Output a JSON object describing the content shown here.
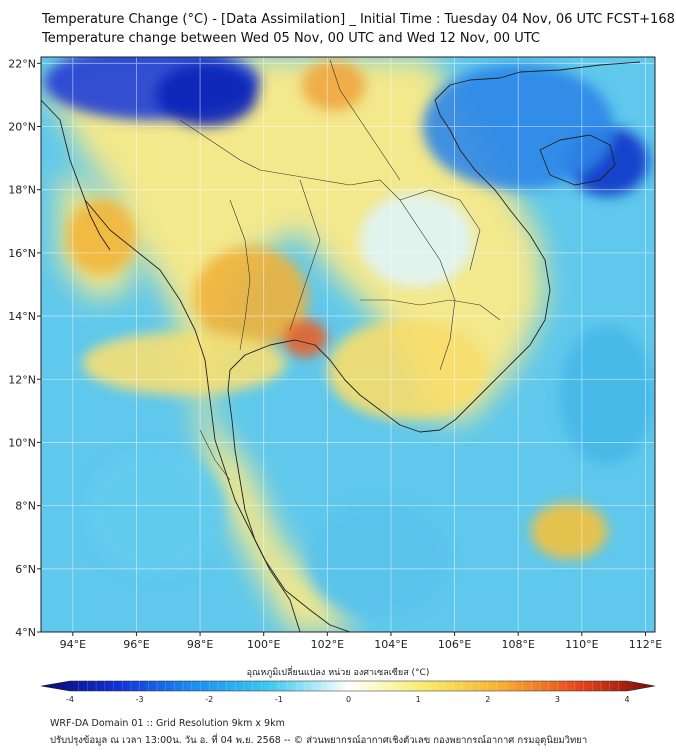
{
  "header": {
    "title_line1": "Temperature Change (°C) - [Data Assimilation] _ Initial Time : Tuesday 04 Nov, 06 UTC FCST+168",
    "title_line2": "Temperature change between Wed 05 Nov, 00 UTC and Wed 12 Nov, 00 UTC"
  },
  "map": {
    "lon_range": [
      93,
      112.3
    ],
    "lat_range": [
      4,
      22.2
    ],
    "lon_ticks": [
      {
        "value": 94,
        "label": "94°E"
      },
      {
        "value": 96,
        "label": "96°E"
      },
      {
        "value": 98,
        "label": "98°E"
      },
      {
        "value": 100,
        "label": "100°E"
      },
      {
        "value": 102,
        "label": "102°E"
      },
      {
        "value": 104,
        "label": "104°E"
      },
      {
        "value": 106,
        "label": "106°E"
      },
      {
        "value": 108,
        "label": "108°E"
      },
      {
        "value": 110,
        "label": "110°E"
      },
      {
        "value": 112,
        "label": "112°E"
      }
    ],
    "lat_ticks": [
      {
        "value": 4,
        "label": "4°N"
      },
      {
        "value": 6,
        "label": "6°N"
      },
      {
        "value": 8,
        "label": "8°N"
      },
      {
        "value": 10,
        "label": "10°N"
      },
      {
        "value": 12,
        "label": "12°N"
      },
      {
        "value": 14,
        "label": "14°N"
      },
      {
        "value": 16,
        "label": "16°N"
      },
      {
        "value": 18,
        "label": "18°N"
      },
      {
        "value": 20,
        "label": "20°N"
      },
      {
        "value": 22,
        "label": "22°N"
      }
    ],
    "grid": true,
    "colors": {
      "ocean_base": "#5fc8ec",
      "land_base": "#f3e88c",
      "coastline": "#222222",
      "grid": "#ffffff"
    },
    "field_blobs": [
      {
        "lon": 96.5,
        "lat": 21.4,
        "rx": 3.4,
        "ry": 1.2,
        "color": "#1d3fd6"
      },
      {
        "lon": 98.2,
        "lat": 21.0,
        "rx": 1.6,
        "ry": 1.0,
        "color": "#0b24b8"
      },
      {
        "lon": 110.8,
        "lat": 18.9,
        "rx": 1.3,
        "ry": 1.1,
        "color": "#0d35c9"
      },
      {
        "lon": 108.0,
        "lat": 20.0,
        "rx": 3.0,
        "ry": 2.0,
        "color": "#2e86e8"
      },
      {
        "lon": 94.9,
        "lat": 16.5,
        "rx": 1.1,
        "ry": 1.2,
        "color": "#f1b53b"
      },
      {
        "lon": 99.6,
        "lat": 14.6,
        "rx": 1.8,
        "ry": 1.6,
        "color": "#f0b23a"
      },
      {
        "lon": 101.3,
        "lat": 13.3,
        "rx": 0.7,
        "ry": 0.6,
        "color": "#e8612a"
      },
      {
        "lon": 102.2,
        "lat": 21.3,
        "rx": 1.0,
        "ry": 0.8,
        "color": "#f0a640"
      },
      {
        "lon": 109.6,
        "lat": 7.2,
        "rx": 1.2,
        "ry": 0.9,
        "color": "#f5c23e"
      },
      {
        "lon": 104.8,
        "lat": 16.4,
        "rx": 1.8,
        "ry": 1.5,
        "color": "#dff4f7"
      },
      {
        "lon": 103.6,
        "lat": 6.3,
        "rx": 2.2,
        "ry": 1.8,
        "color": "#59c2ea"
      },
      {
        "lon": 96.6,
        "lat": 7.8,
        "rx": 2.2,
        "ry": 2.0,
        "color": "#62cbee"
      },
      {
        "lon": 110.8,
        "lat": 11.5,
        "rx": 1.5,
        "ry": 2.2,
        "color": "#45b8e8"
      },
      {
        "lon": 104.5,
        "lat": 12.3,
        "rx": 2.5,
        "ry": 1.6,
        "color": "#f7dd6c"
      },
      {
        "lon": 97.5,
        "lat": 12.5,
        "rx": 3.2,
        "ry": 1.0,
        "color": "#f6df73"
      }
    ]
  },
  "colorbar": {
    "title": "อุณหภูมิเปลี่ยนแปลง หน่วย องศาเซลเซียส (°C)",
    "min": -4,
    "max": 4,
    "ticks": [
      {
        "value": -4,
        "label": "-4"
      },
      {
        "value": -3,
        "label": "-3"
      },
      {
        "value": -2,
        "label": "-2"
      },
      {
        "value": -1,
        "label": "-1"
      },
      {
        "value": 0,
        "label": "0"
      },
      {
        "value": 1,
        "label": "1"
      },
      {
        "value": 2,
        "label": "2"
      },
      {
        "value": 3,
        "label": "3"
      },
      {
        "value": 4,
        "label": "4"
      }
    ],
    "stops": [
      "#0a0a6b",
      "#1230d8",
      "#1b8ff0",
      "#3ccbf0",
      "#ffffff",
      "#f8ec6a",
      "#f7b02f",
      "#e8451d",
      "#7a0a0a"
    ]
  },
  "footer": {
    "line1": "WRF-DA Domain 01 :: Grid Resolution 9km x 9km",
    "line2": "ปรับปรุงข้อมูล ณ เวลา 13:00น. วัน อ. ที่ 04 พ.ย. 2568 -- © ส่วนพยากรณ์อากาศเชิงตัวเลข กองพยากรณ์อากาศ กรมอุตุนิยมวิทยา"
  }
}
